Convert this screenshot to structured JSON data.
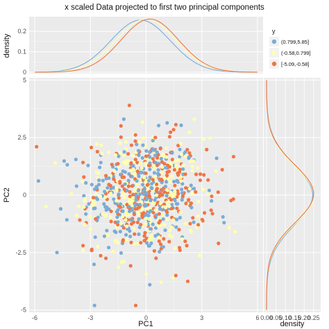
{
  "chart_data": {
    "type": "scatter",
    "title": "x scaled Data projected to first two principal components",
    "xlabel": "PC1",
    "ylabel": "PC2",
    "xlim": [
      -6.3,
      6.3
    ],
    "ylim": [
      -5.1,
      5.1
    ],
    "x_ticks": [
      "-6",
      "-3",
      "0",
      "3",
      "6"
    ],
    "y_ticks": [
      "-5",
      "-2.5",
      "0",
      "2.5",
      "5"
    ],
    "grid": true,
    "background": "#ebebeb",
    "legend": {
      "title": "y",
      "placement": "right",
      "entries": [
        "(0.799,5.85]",
        "(-0.58,0.799]",
        "[-5.09,-0.58]"
      ]
    },
    "series_colors": [
      "#7aacd6",
      "#ffffb0",
      "#f07545"
    ],
    "point_counts_estimate": [
      270,
      270,
      270
    ],
    "series": [
      {
        "name": "(0.799,5.85]",
        "color": "#7aacd6",
        "x_mean": -0.3,
        "x_sd": 1.6,
        "y_mean": 0.0,
        "y_sd": 1.3,
        "outliers": [
          [
            -4.8,
            -2.5
          ],
          [
            4.2,
            -1.2
          ],
          [
            -4.6,
            -0.6
          ],
          [
            3.8,
            1.6
          ],
          [
            0.2,
            -3.9
          ],
          [
            -1.2,
            3.3
          ]
        ]
      },
      {
        "name": "(-0.58,0.799]",
        "color": "#ffffb0",
        "x_mean": 0.0,
        "x_sd": 1.6,
        "y_mean": 0.0,
        "y_sd": 1.25,
        "outliers": [
          [
            -5.4,
            -0.5
          ],
          [
            -4.9,
            1.4
          ],
          [
            4.8,
            -1.6
          ],
          [
            0.8,
            -3.8
          ],
          [
            -3.4,
            -2.4
          ],
          [
            2.6,
            3.3
          ]
        ]
      },
      {
        "name": "[-5.09,-0.58]",
        "color": "#f07545",
        "x_mean": 0.2,
        "x_sd": 1.5,
        "y_mean": 0.0,
        "y_sd": 1.25,
        "outliers": [
          [
            -5.9,
            2.1
          ],
          [
            4.1,
            1.1
          ],
          [
            3.9,
            -2.1
          ],
          [
            -0.9,
            3.9
          ],
          [
            -3.4,
            -2.2
          ],
          [
            1.6,
            -3.5
          ]
        ]
      }
    ],
    "top_density": {
      "ylabel": "density",
      "y_ticks": [
        "0",
        "0.1",
        "0.2"
      ],
      "ylim": [
        0,
        0.25
      ],
      "curves": [
        {
          "name": "(0.799,5.85]",
          "mean": -0.3,
          "sd": 1.6,
          "peak": 0.255
        },
        {
          "name": "(-0.58,0.799]",
          "mean": 0.0,
          "sd": 1.6,
          "peak": 0.26
        },
        {
          "name": "[-5.09,-0.58]",
          "mean": 0.2,
          "sd": 1.55,
          "peak": 0.26
        }
      ]
    },
    "right_density": {
      "xlabel": "density",
      "x_ticks": [
        "0.00",
        "0.05",
        "0.10",
        "0.15",
        "0.20",
        "0.25"
      ],
      "xlim": [
        0,
        0.28
      ],
      "curves": [
        {
          "name": "(0.799,5.85]",
          "mean": 0.0,
          "sd": 1.3,
          "peak": 0.245
        },
        {
          "name": "(-0.58,0.799]",
          "mean": 0.0,
          "sd": 1.25,
          "peak": 0.25
        },
        {
          "name": "[-5.09,-0.58]",
          "mean": 0.05,
          "sd": 1.25,
          "peak": 0.25
        }
      ]
    }
  }
}
